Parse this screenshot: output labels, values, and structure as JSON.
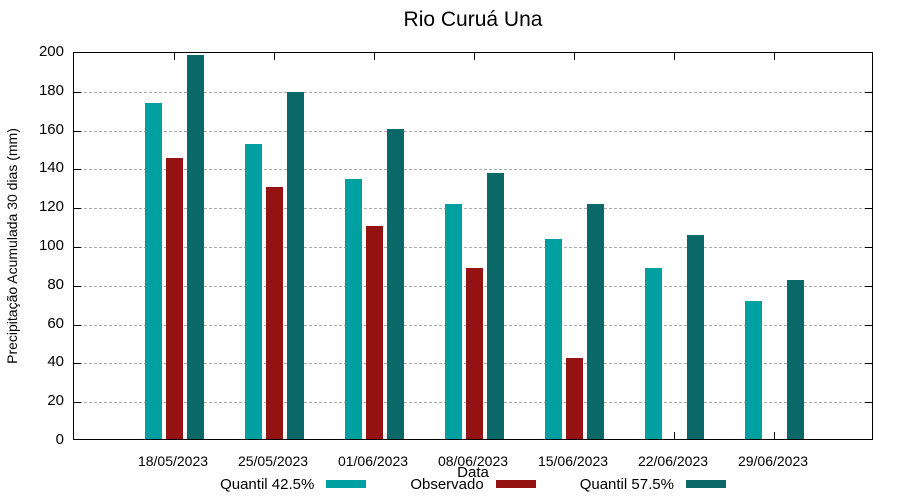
{
  "title": "Rio Curuá Una",
  "chart_data": {
    "type": "bar",
    "title": "Rio Curuá Una",
    "xlabel": "Data",
    "ylabel": "Precipitação Acumulada 30 dias (mm)",
    "ylim": [
      0,
      200
    ],
    "yticks": [
      0,
      20,
      40,
      60,
      80,
      100,
      120,
      140,
      160,
      180,
      200
    ],
    "grid": true,
    "grid_style": "dashed",
    "legend_position": "bottom",
    "background_color": "#FFFFFF",
    "border_color": "#000000",
    "grid_color": "#ABABAB",
    "categories": [
      "18/05/2023",
      "25/05/2023",
      "01/06/2023",
      "08/06/2023",
      "15/06/2023",
      "22/06/2023",
      "29/06/2023"
    ],
    "series": [
      {
        "name": "Quantil 42.5%",
        "color": "#00A0A0",
        "values": [
          173,
          152,
          134,
          121,
          103,
          88,
          71
        ]
      },
      {
        "name": "Observado",
        "color": "#951212",
        "values": [
          145,
          130,
          110,
          88,
          42,
          null,
          null
        ]
      },
      {
        "name": "Quantil 57.5%",
        "color": "#0B6868",
        "values": [
          198,
          179,
          160,
          137,
          121,
          105,
          82
        ]
      }
    ]
  }
}
